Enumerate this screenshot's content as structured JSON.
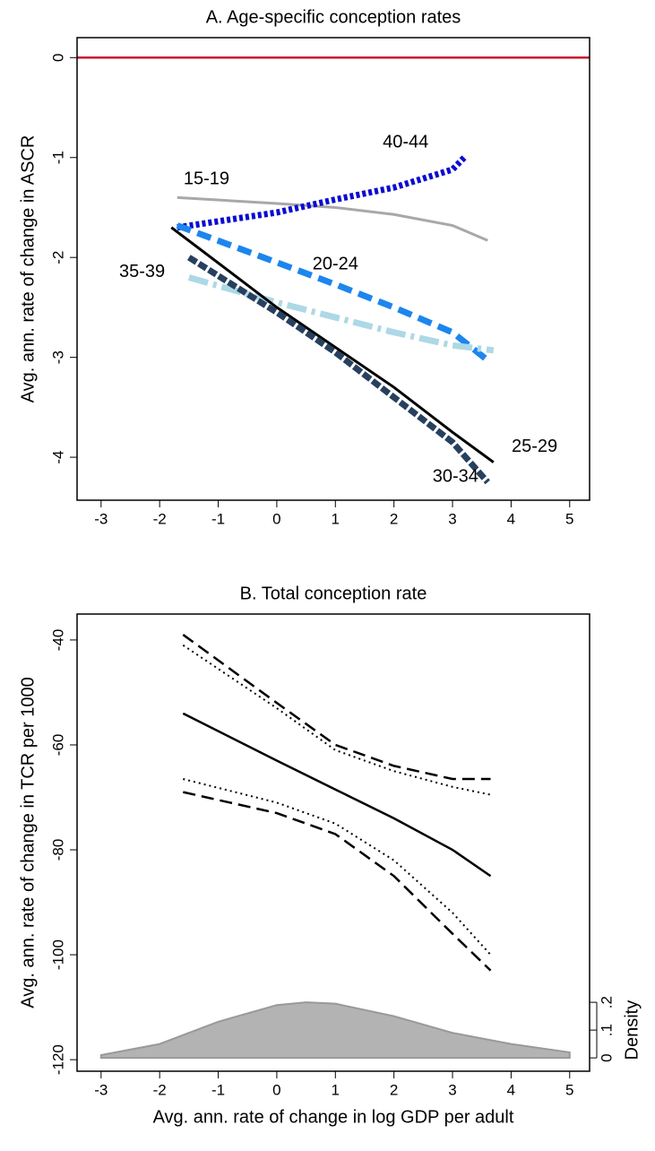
{
  "chart_data": [
    {
      "type": "line",
      "title": "A. Age-specific conception rates",
      "ylabel": "Avg. ann. rate of change in ASCR",
      "xlim": [
        -3.41,
        5.34
      ],
      "ylim": [
        -4.43,
        0.2
      ],
      "xticks": [
        -3,
        -2,
        -1,
        0,
        1,
        2,
        3,
        4,
        5
      ],
      "yticks": [
        0,
        -1,
        -2,
        -3,
        -4
      ],
      "reference_line": {
        "value": 0,
        "color": "#c8102e"
      },
      "series": [
        {
          "name": "15-19",
          "color": "#a8a8a8",
          "style": "solid",
          "x": [
            -1.7,
            0,
            1,
            2,
            3,
            3.6
          ],
          "values": [
            -1.4,
            -1.46,
            -1.5,
            -1.57,
            -1.68,
            -1.83
          ]
        },
        {
          "name": "40-44",
          "color": "#0a0ad0",
          "style": "dotted",
          "x": [
            -1.7,
            0,
            1,
            2,
            3,
            3.2
          ],
          "values": [
            -1.7,
            -1.55,
            -1.42,
            -1.3,
            -1.12,
            -1.0
          ]
        },
        {
          "name": "20-24",
          "color": "#1c86ee",
          "style": "dashed",
          "x": [
            -1.7,
            0,
            1,
            2,
            3,
            3.6
          ],
          "values": [
            -1.68,
            -2.05,
            -2.27,
            -2.5,
            -2.75,
            -3.03
          ]
        },
        {
          "name": "35-39",
          "color": "#add8e6",
          "style": "longdash",
          "x": [
            -1.5,
            0,
            1,
            2,
            3,
            3.7
          ],
          "values": [
            -2.2,
            -2.45,
            -2.6,
            -2.75,
            -2.88,
            -2.93
          ]
        },
        {
          "name": "25-29",
          "color": "#000000",
          "style": "solid",
          "x": [
            -1.8,
            0,
            1,
            2,
            3,
            3.7
          ],
          "values": [
            -1.7,
            -2.5,
            -2.9,
            -3.3,
            -3.75,
            -4.05
          ]
        },
        {
          "name": "30-34",
          "color": "#27405e",
          "style": "dashdot",
          "x": [
            -1.5,
            0,
            1,
            2,
            3,
            3.6
          ],
          "values": [
            -2.0,
            -2.55,
            -2.95,
            -3.4,
            -3.85,
            -4.25
          ]
        }
      ]
    },
    {
      "type": "line",
      "title": "B. Total conception rate",
      "ylabel": "Avg. ann. rate of change in TCR per 1000",
      "xlabel": "Avg. ann. rate of change in log GDP per adult",
      "y2label": "Density",
      "xlim": [
        -3.41,
        5.34
      ],
      "ylim": [
        -122.2,
        -35.06
      ],
      "xticks": [
        -3,
        -2,
        -1,
        0,
        1,
        2,
        3,
        4,
        5
      ],
      "yticks": [
        -40,
        -60,
        -80,
        -100,
        -120
      ],
      "y2lim": [
        -0.048,
        1.597
      ],
      "y2ticks": [
        0,
        {
          "value": 0.1,
          "label": ".1"
        },
        {
          "value": 0.2,
          "label": ".2"
        }
      ],
      "series": [
        {
          "color": "#000000",
          "style": "solid",
          "x": [
            -1.6,
            0,
            1,
            2,
            3,
            3.65
          ],
          "values": [
            -54,
            -63,
            -68.5,
            -74,
            -80,
            -85
          ]
        },
        {
          "color": "#000000",
          "style": "dashed",
          "x": [
            -1.6,
            0,
            1,
            2,
            3,
            3.65
          ],
          "values": [
            -39,
            -52,
            -60,
            -64,
            -66.5,
            -66.5
          ]
        },
        {
          "color": "#000000",
          "style": "dotted",
          "x": [
            -1.6,
            0,
            1,
            2,
            3,
            3.65
          ],
          "values": [
            -41,
            -53,
            -61,
            -65,
            -68,
            -69.5
          ]
        },
        {
          "color": "#000000",
          "style": "dotted",
          "x": [
            -1.6,
            0,
            1,
            2,
            3,
            3.65
          ],
          "values": [
            -66.5,
            -71,
            -75,
            -82,
            -92,
            -100
          ]
        },
        {
          "color": "#000000",
          "style": "dashed",
          "x": [
            -1.6,
            0,
            1,
            2,
            3,
            3.65
          ],
          "values": [
            -69,
            -73,
            -77,
            -85,
            -96,
            -103
          ]
        },
        {
          "color": "#b3b3b3",
          "style": "area",
          "axis": "y2",
          "x": [
            -3,
            -2,
            -1,
            0,
            0.5,
            1,
            2,
            3,
            4,
            5
          ],
          "values": [
            0.01,
            0.05,
            0.13,
            0.19,
            0.2,
            0.195,
            0.15,
            0.09,
            0.05,
            0.02
          ]
        }
      ]
    }
  ]
}
